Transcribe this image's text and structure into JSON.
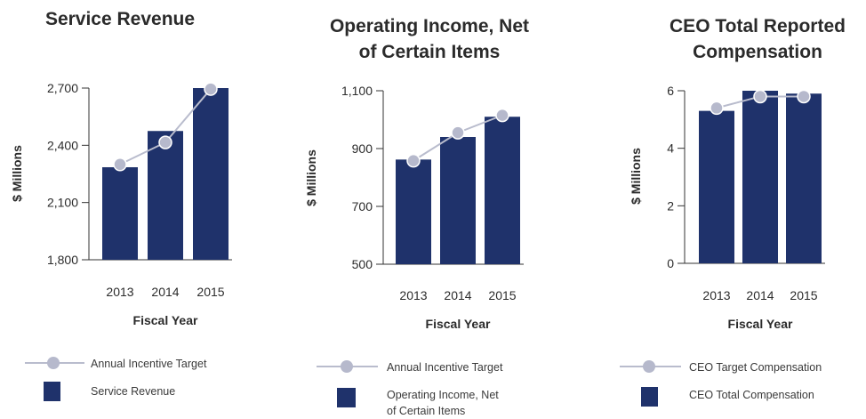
{
  "colors": {
    "bar": "#1f326b",
    "target_line": "#b9bccd",
    "marker": "#b6b9cc",
    "axis": "#333333",
    "text": "#2b2b2b"
  },
  "chart_data": [
    {
      "type": "bar",
      "title_lines": [
        "Service Revenue"
      ],
      "xlabel": "Fiscal Year",
      "ylabel": "$ Millions",
      "categories": [
        "2013",
        "2014",
        "2015"
      ],
      "ylim": [
        1800,
        2700
      ],
      "yticks": [
        "1,800",
        "2,100",
        "2,400",
        "2,700"
      ],
      "ytick_values": [
        1800,
        2100,
        2400,
        2700
      ],
      "series": [
        {
          "name": "Service Revenue",
          "kind": "bar",
          "values": [
            2285,
            2475,
            2700
          ]
        },
        {
          "name": "Annual Incentive Target",
          "kind": "line",
          "values": [
            2300,
            2415,
            2695
          ]
        }
      ],
      "legend": [
        {
          "type": "line",
          "lines": [
            "Annual Incentive Target"
          ]
        },
        {
          "type": "bar",
          "lines": [
            "Service Revenue"
          ]
        }
      ],
      "legend_position": "bottom"
    },
    {
      "type": "bar",
      "title_lines": [
        "Operating Income, Net",
        "of Certain Items"
      ],
      "xlabel": "Fiscal Year",
      "ylabel": "$ Millions",
      "categories": [
        "2013",
        "2014",
        "2015"
      ],
      "ylim": [
        500,
        1100
      ],
      "yticks": [
        "500",
        "700",
        "900",
        "1,100"
      ],
      "ytick_values": [
        500,
        700,
        900,
        1100
      ],
      "series": [
        {
          "name": "Operating Income, Net of Certain Items",
          "kind": "bar",
          "values": [
            862,
            940,
            1010
          ]
        },
        {
          "name": "Annual Incentive Target",
          "kind": "line",
          "values": [
            858,
            955,
            1015
          ]
        }
      ],
      "legend": [
        {
          "type": "line",
          "lines": [
            "Annual Incentive Target"
          ]
        },
        {
          "type": "bar",
          "lines": [
            "Operating Income, Net",
            "of Certain Items"
          ]
        }
      ],
      "legend_position": "bottom"
    },
    {
      "type": "bar",
      "title_lines": [
        "CEO Total Reported",
        "Compensation"
      ],
      "xlabel": "Fiscal Year",
      "ylabel": "$ Millions",
      "categories": [
        "2013",
        "2014",
        "2015"
      ],
      "ylim": [
        0,
        6
      ],
      "yticks": [
        "0",
        "2",
        "4",
        "6"
      ],
      "ytick_values": [
        0,
        2,
        4,
        6
      ],
      "series": [
        {
          "name": "CEO Total Compensation",
          "kind": "bar",
          "values": [
            5.3,
            6.0,
            5.9
          ]
        },
        {
          "name": "CEO Target Compensation",
          "kind": "line",
          "values": [
            5.4,
            5.8,
            5.8
          ]
        }
      ],
      "legend": [
        {
          "type": "line",
          "lines": [
            "CEO Target Compensation"
          ]
        },
        {
          "type": "bar",
          "lines": [
            "CEO Total Compensation"
          ]
        }
      ],
      "legend_position": "bottom"
    }
  ]
}
